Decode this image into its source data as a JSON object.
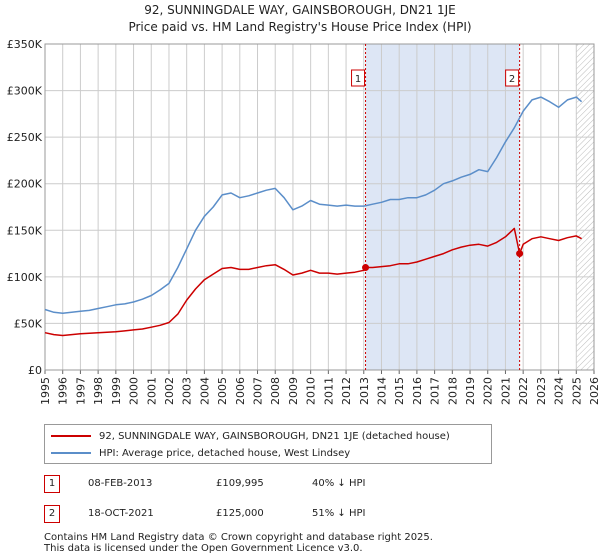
{
  "title_line1": "92, SUNNINGDALE WAY, GAINSBOROUGH, DN21 1JE",
  "title_line2": "Price paid vs. HM Land Registry's House Price Index (HPI)",
  "legend": {
    "property": {
      "label": "92, SUNNINGDALE WAY, GAINSBOROUGH, DN21 1JE (detached house)",
      "color": "#cc0000"
    },
    "hpi": {
      "label": "HPI: Average price, detached house, West Lindsey",
      "color": "#5b8ec9"
    }
  },
  "sales": [
    {
      "num": "1",
      "date": "08-FEB-2013",
      "price": "£109,995",
      "delta": "40% ↓ HPI"
    },
    {
      "num": "2",
      "date": "18-OCT-2021",
      "price": "£125,000",
      "delta": "51% ↓ HPI"
    }
  ],
  "footer_line1": "Contains HM Land Registry data © Crown copyright and database right 2025.",
  "footer_line2": "This data is licensed under the Open Government Licence v3.0.",
  "colors": {
    "property": "#cc0000",
    "hpi": "#5b8ec9",
    "shade": "#dde6f5",
    "grid": "#cccccc"
  },
  "chart_data": {
    "type": "line",
    "xlim": [
      1995,
      2026
    ],
    "ylim": [
      0,
      350000
    ],
    "y_ticks": [
      0,
      50000,
      100000,
      150000,
      200000,
      250000,
      300000,
      350000
    ],
    "y_tick_labels": [
      "£0",
      "£50K",
      "£100K",
      "£150K",
      "£200K",
      "£250K",
      "£300K",
      "£350K"
    ],
    "x_ticks": [
      1995,
      1996,
      1997,
      1998,
      1999,
      2000,
      2001,
      2002,
      2003,
      2004,
      2005,
      2006,
      2007,
      2008,
      2009,
      2010,
      2011,
      2012,
      2013,
      2014,
      2015,
      2016,
      2017,
      2018,
      2019,
      2020,
      2021,
      2022,
      2023,
      2024,
      2025,
      2026
    ],
    "x_tick_labels": [
      "1995",
      "1996",
      "1997",
      "1998",
      "1999",
      "2000",
      "2001",
      "2002",
      "2003",
      "2004",
      "2005",
      "2006",
      "2007",
      "2008",
      "2009",
      "2010",
      "2011",
      "2012",
      "2013",
      "2014",
      "2015",
      "2016",
      "2017",
      "2018",
      "2019",
      "2020",
      "2021",
      "2022",
      "2023",
      "2024",
      "2025",
      "2026"
    ],
    "grid": true,
    "shaded_range": [
      2013.1,
      2021.8
    ],
    "hatched_from": 2025.0,
    "annotations": [
      {
        "label": "1",
        "x": 2013.1,
        "value": 109995
      },
      {
        "label": "2",
        "x": 2021.8,
        "value": 125000
      }
    ],
    "series": [
      {
        "name": "HPI: Average price, detached house, West Lindsey",
        "x": [
          1995,
          1995.5,
          1996,
          1996.5,
          1997,
          1997.5,
          1998,
          1998.5,
          1999,
          1999.5,
          2000,
          2000.5,
          2001,
          2001.5,
          2002,
          2002.5,
          2003,
          2003.5,
          2004,
          2004.5,
          2005,
          2005.5,
          2006,
          2006.5,
          2007,
          2007.5,
          2008,
          2008.5,
          2009,
          2009.5,
          2010,
          2010.5,
          2011,
          2011.5,
          2012,
          2012.5,
          2013,
          2013.5,
          2014,
          2014.5,
          2015,
          2015.5,
          2016,
          2016.5,
          2017,
          2017.5,
          2018,
          2018.5,
          2019,
          2019.5,
          2020,
          2020.5,
          2021,
          2021.5,
          2022,
          2022.5,
          2023,
          2023.5,
          2024,
          2024.5,
          2025,
          2025.3
        ],
        "values": [
          65000,
          62000,
          61000,
          62000,
          63000,
          64000,
          66000,
          68000,
          70000,
          71000,
          73000,
          76000,
          80000,
          86000,
          93000,
          110000,
          130000,
          150000,
          165000,
          175000,
          188000,
          190000,
          185000,
          187000,
          190000,
          193000,
          195000,
          185000,
          172000,
          176000,
          182000,
          178000,
          177000,
          176000,
          177000,
          176000,
          176000,
          178000,
          180000,
          183000,
          183000,
          185000,
          185000,
          188000,
          193000,
          200000,
          203000,
          207000,
          210000,
          215000,
          213000,
          228000,
          245000,
          260000,
          278000,
          290000,
          293000,
          288000,
          282000,
          290000,
          293000,
          288000
        ]
      },
      {
        "name": "92, SUNNINGDALE WAY, GAINSBOROUGH, DN21 1JE (detached house)",
        "x": [
          1995,
          1995.5,
          1996,
          1996.5,
          1997,
          1997.5,
          1998,
          1998.5,
          1999,
          1999.5,
          2000,
          2000.5,
          2001,
          2001.5,
          2002,
          2002.5,
          2003,
          2003.5,
          2004,
          2004.5,
          2005,
          2005.5,
          2006,
          2006.5,
          2007,
          2007.5,
          2008,
          2008.5,
          2009,
          2009.5,
          2010,
          2010.5,
          2011,
          2011.5,
          2012,
          2012.5,
          2013,
          2013.1,
          2013.5,
          2014,
          2014.5,
          2015,
          2015.5,
          2016,
          2016.5,
          2017,
          2017.5,
          2018,
          2018.5,
          2019,
          2019.5,
          2020,
          2020.5,
          2021,
          2021.5,
          2021.8,
          2022,
          2022.5,
          2023,
          2023.5,
          2024,
          2024.5,
          2025,
          2025.3
        ],
        "values": [
          40000,
          38000,
          37000,
          38000,
          39000,
          39500,
          40000,
          40500,
          41000,
          42000,
          43000,
          44000,
          46000,
          48000,
          51000,
          60000,
          75000,
          87000,
          97000,
          103000,
          109000,
          110000,
          108000,
          108000,
          110000,
          112000,
          113000,
          108000,
          102000,
          104000,
          107000,
          104000,
          104000,
          103000,
          104000,
          105000,
          107000,
          109995,
          110000,
          111000,
          112000,
          114000,
          114000,
          116000,
          119000,
          122000,
          125000,
          129000,
          132000,
          134000,
          135000,
          133000,
          137000,
          143000,
          152000,
          125000,
          135000,
          141000,
          143000,
          141000,
          139000,
          142000,
          144000,
          141000
        ]
      }
    ]
  }
}
